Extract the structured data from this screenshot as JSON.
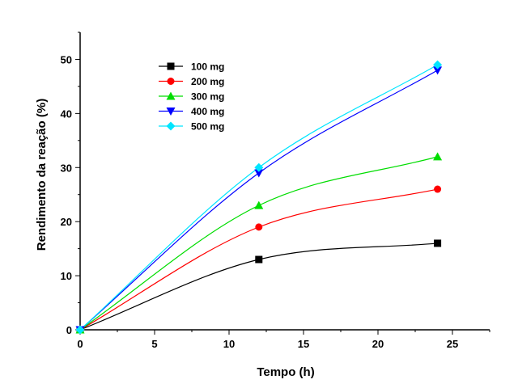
{
  "chart_data": {
    "type": "line",
    "xlabel": "Tempo (h)",
    "ylabel": "Rendimento da reação (%)",
    "xlim": [
      0,
      27.5
    ],
    "ylim": [
      0,
      55
    ],
    "xticks": [
      "0",
      "5",
      "10",
      "15",
      "20",
      "25"
    ],
    "yticks": [
      "0",
      "10",
      "20",
      "30",
      "40",
      "50"
    ],
    "grid": false,
    "legend_position": "top-left inside",
    "x": [
      0,
      12,
      24
    ],
    "series": [
      {
        "name": "100 mg",
        "values": [
          0,
          13,
          16
        ],
        "color": "#000000",
        "marker": "square"
      },
      {
        "name": "200 mg",
        "values": [
          0,
          19,
          26
        ],
        "color": "#ff0000",
        "marker": "circle"
      },
      {
        "name": "300 mg",
        "values": [
          0,
          23,
          32
        ],
        "color": "#00dd00",
        "marker": "triangle-up"
      },
      {
        "name": "400 mg",
        "values": [
          0,
          29,
          48
        ],
        "color": "#0000ff",
        "marker": "triangle-down"
      },
      {
        "name": "500 mg",
        "values": [
          0,
          30,
          49
        ],
        "color": "#00e5ff",
        "marker": "diamond"
      }
    ]
  }
}
